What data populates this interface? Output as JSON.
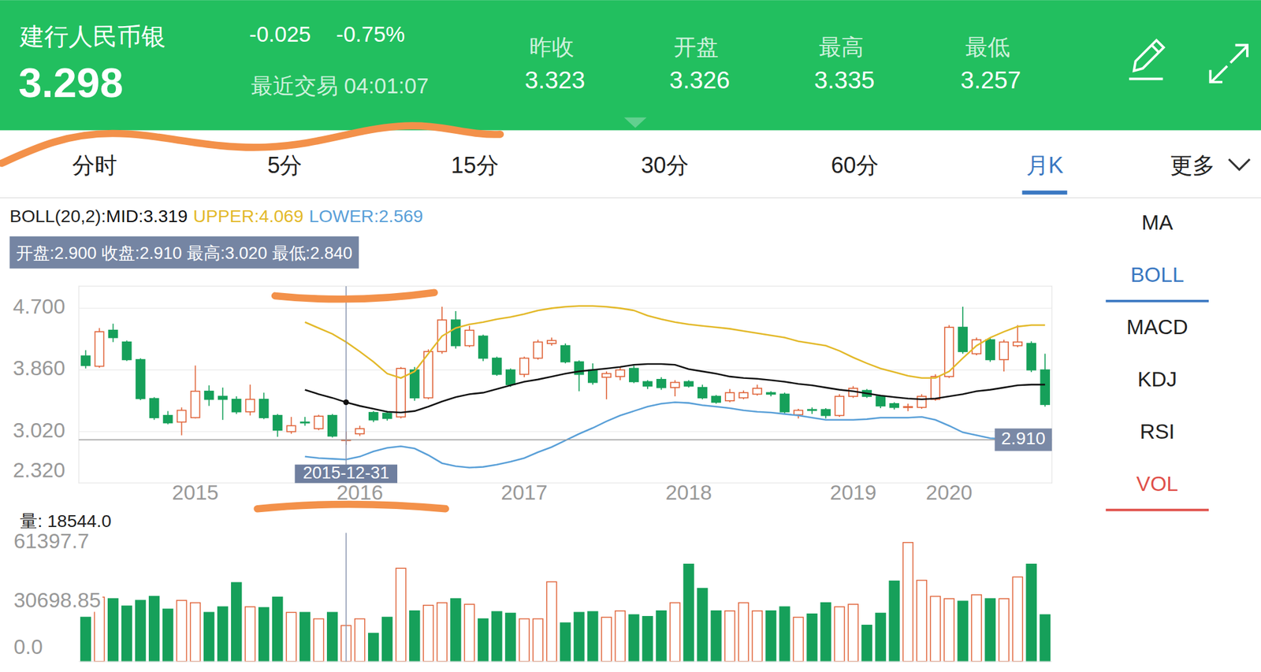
{
  "header": {
    "name": "建行人民币银",
    "price": "3.298",
    "change": "-0.025",
    "change_pct": "-0.75%",
    "last_trade": "最近交易 04:01:07",
    "stats": [
      {
        "label": "昨收",
        "value": "3.323"
      },
      {
        "label": "开盘",
        "value": "3.326"
      },
      {
        "label": "最高",
        "value": "3.335"
      },
      {
        "label": "最低",
        "value": "3.257"
      }
    ]
  },
  "tabs": {
    "items": [
      "分时",
      "5分",
      "15分",
      "30分",
      "60分",
      "月K",
      "更多"
    ],
    "selected": 5
  },
  "indicators": {
    "items": [
      "MA",
      "BOLL",
      "MACD",
      "KDJ",
      "RSI",
      "VOL"
    ],
    "selected": [
      1,
      5
    ]
  },
  "chart_data": [
    {
      "type": "candlestick",
      "indicator_label": "BOLL(20,2):",
      "categories": [
        null,
        null,
        null,
        null,
        null,
        null,
        null,
        null,
        "2015",
        null,
        null,
        null,
        null,
        null,
        null,
        null,
        null,
        null,
        null,
        null,
        "2016",
        null,
        null,
        null,
        null,
        null,
        null,
        null,
        null,
        null,
        null,
        null,
        "2017",
        null,
        null,
        null,
        null,
        null,
        null,
        null,
        null,
        null,
        null,
        null,
        "2018",
        null,
        null,
        null,
        null,
        null,
        null,
        null,
        null,
        null,
        null,
        null,
        "2019",
        null,
        null,
        null,
        null,
        null,
        null,
        "2020",
        null,
        null,
        null,
        null,
        null,
        null,
        null
      ],
      "open": [
        4.05,
        3.91,
        4.4,
        4.24,
        4.0,
        3.47,
        3.24,
        3.15,
        3.21,
        3.57,
        3.5,
        3.46,
        3.29,
        3.46,
        3.24,
        3.02,
        3.15,
        3.06,
        3.24,
        2.9,
        2.99,
        3.28,
        3.27,
        3.22,
        3.86,
        3.48,
        4.11,
        4.54,
        4.19,
        4.32,
        4.02,
        3.86,
        3.8,
        4.02,
        4.22,
        4.19,
        3.97,
        3.86,
        3.76,
        3.77,
        3.88,
        3.7,
        3.73,
        3.62,
        3.7,
        3.62,
        3.5,
        3.44,
        3.48,
        3.53,
        3.55,
        3.53,
        3.25,
        3.32,
        3.32,
        3.24,
        3.5,
        3.58,
        3.5,
        3.4,
        3.35,
        3.35,
        3.46,
        3.77,
        4.44,
        4.08,
        4.27,
        4.0,
        4.19,
        4.22,
        3.86
      ],
      "close": [
        3.92,
        4.38,
        4.3,
        4.0,
        3.47,
        3.21,
        3.14,
        3.31,
        3.57,
        3.46,
        3.46,
        3.29,
        3.46,
        3.21,
        3.04,
        3.1,
        3.14,
        3.23,
        2.96,
        2.91,
        3.06,
        3.18,
        3.2,
        3.88,
        3.48,
        4.11,
        4.54,
        4.19,
        4.4,
        4.02,
        3.8,
        3.66,
        4.02,
        4.24,
        4.26,
        3.97,
        3.8,
        3.69,
        3.81,
        3.86,
        3.7,
        3.64,
        3.62,
        3.69,
        3.64,
        3.48,
        3.42,
        3.55,
        3.55,
        3.61,
        3.53,
        3.29,
        3.31,
        3.31,
        3.24,
        3.5,
        3.61,
        3.5,
        3.37,
        3.35,
        3.36,
        3.5,
        3.77,
        4.44,
        4.11,
        4.27,
        4.0,
        4.24,
        4.24,
        3.86,
        3.39
      ],
      "high": [
        4.13,
        4.43,
        4.49,
        4.26,
        4.02,
        3.49,
        3.3,
        3.35,
        3.92,
        3.65,
        3.62,
        3.5,
        3.66,
        3.55,
        3.26,
        3.22,
        3.22,
        3.25,
        3.26,
        3.02,
        3.1,
        3.3,
        3.3,
        3.9,
        3.9,
        4.14,
        4.72,
        4.66,
        4.46,
        4.34,
        4.04,
        3.88,
        4.04,
        4.27,
        4.3,
        4.22,
        3.99,
        3.95,
        3.84,
        3.89,
        3.92,
        3.72,
        3.76,
        3.72,
        3.72,
        3.66,
        3.52,
        3.6,
        3.58,
        3.66,
        3.57,
        3.55,
        3.33,
        3.35,
        3.34,
        3.53,
        3.64,
        3.6,
        3.52,
        3.42,
        3.4,
        3.53,
        3.8,
        4.47,
        4.72,
        4.3,
        4.3,
        4.27,
        4.47,
        4.25,
        4.08
      ],
      "low": [
        3.88,
        3.89,
        4.24,
        3.98,
        3.45,
        3.18,
        3.12,
        2.97,
        3.2,
        3.37,
        3.18,
        3.26,
        3.24,
        3.19,
        2.95,
        2.99,
        3.1,
        3.04,
        2.94,
        2.84,
        2.96,
        3.15,
        3.17,
        3.2,
        3.44,
        3.46,
        4.08,
        4.15,
        4.17,
        3.98,
        3.78,
        3.63,
        3.76,
        4.0,
        4.19,
        3.95,
        3.57,
        3.66,
        3.46,
        3.72,
        3.68,
        3.6,
        3.59,
        3.5,
        3.62,
        3.46,
        3.4,
        3.42,
        3.46,
        3.51,
        3.5,
        3.27,
        3.2,
        3.26,
        3.2,
        3.22,
        3.48,
        3.48,
        3.34,
        3.32,
        3.3,
        3.33,
        3.44,
        3.75,
        4.08,
        4.06,
        3.97,
        3.84,
        4.17,
        3.83,
        3.36
      ],
      "series": [
        {
          "name": "MID:3.319",
          "color": "#111111",
          "type": "line",
          "values": [
            null,
            null,
            null,
            null,
            null,
            null,
            null,
            null,
            null,
            null,
            null,
            null,
            null,
            null,
            null,
            null,
            3.59,
            3.53,
            3.48,
            3.42,
            3.37,
            3.33,
            3.29,
            3.28,
            3.3,
            3.36,
            3.43,
            3.49,
            3.53,
            3.55,
            3.6,
            3.65,
            3.7,
            3.73,
            3.77,
            3.81,
            3.84,
            3.86,
            3.88,
            3.9,
            3.93,
            3.94,
            3.94,
            3.93,
            3.87,
            3.84,
            3.81,
            3.77,
            3.75,
            3.74,
            3.72,
            3.7,
            3.67,
            3.65,
            3.62,
            3.59,
            3.57,
            3.54,
            3.51,
            3.49,
            3.47,
            3.46,
            3.47,
            3.5,
            3.53,
            3.57,
            3.59,
            3.62,
            3.65,
            3.66,
            3.66
          ]
        },
        {
          "name": "UPPER:4.069",
          "color": "#e3b92a",
          "type": "line",
          "values": [
            null,
            null,
            null,
            null,
            null,
            null,
            null,
            null,
            null,
            null,
            null,
            null,
            null,
            null,
            null,
            null,
            4.51,
            4.43,
            4.35,
            4.24,
            4.11,
            3.97,
            3.81,
            3.75,
            3.84,
            4.08,
            4.32,
            4.43,
            4.48,
            4.51,
            4.55,
            4.58,
            4.62,
            4.67,
            4.7,
            4.72,
            4.73,
            4.73,
            4.72,
            4.7,
            4.67,
            4.6,
            4.55,
            4.51,
            4.48,
            4.46,
            4.44,
            4.42,
            4.39,
            4.36,
            4.33,
            4.3,
            4.25,
            4.22,
            4.19,
            4.12,
            4.03,
            3.95,
            3.88,
            3.83,
            3.78,
            3.75,
            3.75,
            3.84,
            4.02,
            4.19,
            4.3,
            4.38,
            4.45,
            4.47,
            4.47
          ]
        },
        {
          "name": "LOWER:2.569",
          "color": "#5aa0d8",
          "type": "line",
          "values": [
            null,
            null,
            null,
            null,
            null,
            null,
            null,
            null,
            null,
            null,
            null,
            null,
            null,
            null,
            null,
            null,
            2.68,
            2.66,
            2.65,
            2.64,
            2.68,
            2.75,
            2.8,
            2.82,
            2.79,
            2.7,
            2.59,
            2.55,
            2.53,
            2.54,
            2.57,
            2.61,
            2.66,
            2.74,
            2.81,
            2.9,
            2.99,
            3.07,
            3.16,
            3.24,
            3.3,
            3.36,
            3.4,
            3.42,
            3.41,
            3.38,
            3.36,
            3.34,
            3.31,
            3.29,
            3.28,
            3.26,
            3.24,
            3.21,
            3.18,
            3.18,
            3.18,
            3.19,
            3.21,
            3.21,
            3.21,
            3.22,
            3.18,
            3.1,
            3.01,
            2.97,
            2.93,
            2.92,
            2.91,
            2.91,
            2.9
          ]
        }
      ],
      "ylim": [
        2.32,
        5.0
      ],
      "yticks": [
        {
          "value": 2.32,
          "label": "2.320"
        },
        {
          "value": 3.02,
          "label": "3.020"
        },
        {
          "value": 3.86,
          "label": "3.860"
        },
        {
          "value": 4.7,
          "label": "4.700"
        }
      ],
      "grid": true,
      "tooltip": "开盘:2.900 收盘:2.910 最高:3.020 最低:2.840",
      "crosshair": {
        "index": 19,
        "value": 2.91,
        "value_label": "2.910",
        "date_label": "2015-12-31"
      }
    },
    {
      "type": "bar",
      "title": "量: 18544.0",
      "values": [
        22800,
        33200,
        32400,
        28600,
        31500,
        33600,
        27000,
        31500,
        30300,
        25300,
        28200,
        40700,
        28200,
        27800,
        33200,
        25300,
        25300,
        22000,
        25300,
        18544.0,
        22000,
        14500,
        22800,
        48100,
        26100,
        29000,
        30300,
        32400,
        29500,
        22000,
        25700,
        24900,
        22000,
        22000,
        41100,
        19900,
        25300,
        25700,
        22800,
        26100,
        24100,
        23200,
        26100,
        30300,
        50200,
        37700,
        26100,
        26100,
        30300,
        26100,
        26100,
        28200,
        22800,
        24500,
        30300,
        28200,
        29500,
        18700,
        24900,
        41500,
        61397.7,
        41900,
        33600,
        32400,
        31100,
        34400,
        32400,
        32400,
        43600,
        50200,
        24100
      ],
      "ylim": [
        0,
        61397.7
      ],
      "yticks": [
        {
          "value": 0,
          "label": "0.0"
        },
        30698.85,
        61397.7
      ],
      "grid": false,
      "tick_labels": "y"
    }
  ]
}
